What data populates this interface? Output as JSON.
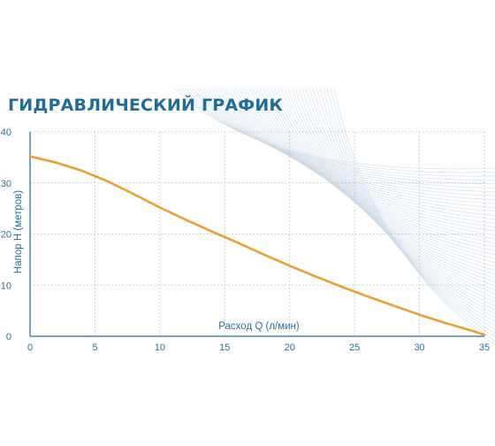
{
  "chart_data": {
    "type": "line",
    "title": "ГИДРАВЛИЧЕСКИЙ ГРАФИК",
    "xlabel": "Расход Q (л/мин)",
    "ylabel": "Напор H (метров)",
    "xlim": [
      0,
      35
    ],
    "ylim": [
      0,
      40
    ],
    "x_ticks": [
      0,
      5,
      10,
      15,
      20,
      25,
      30,
      35
    ],
    "y_ticks": [
      0,
      10,
      20,
      30,
      40
    ],
    "grid": true,
    "series": [
      {
        "x": [
          0,
          2,
          4,
          6,
          8,
          10,
          12,
          14,
          16,
          18,
          20,
          22,
          24,
          26,
          28,
          30,
          32,
          34,
          35
        ],
        "y": [
          35.2,
          34.0,
          32.4,
          30.3,
          27.8,
          25.2,
          22.8,
          20.5,
          18.3,
          16.0,
          13.8,
          11.7,
          9.7,
          7.8,
          6.0,
          4.2,
          2.6,
          1.1,
          0.3
        ]
      }
    ],
    "colors": {
      "curve": "#e9a030",
      "title": "#1f6e9a",
      "ticks": "#2a6f97",
      "decor_lines": "#c9d8e6"
    }
  }
}
